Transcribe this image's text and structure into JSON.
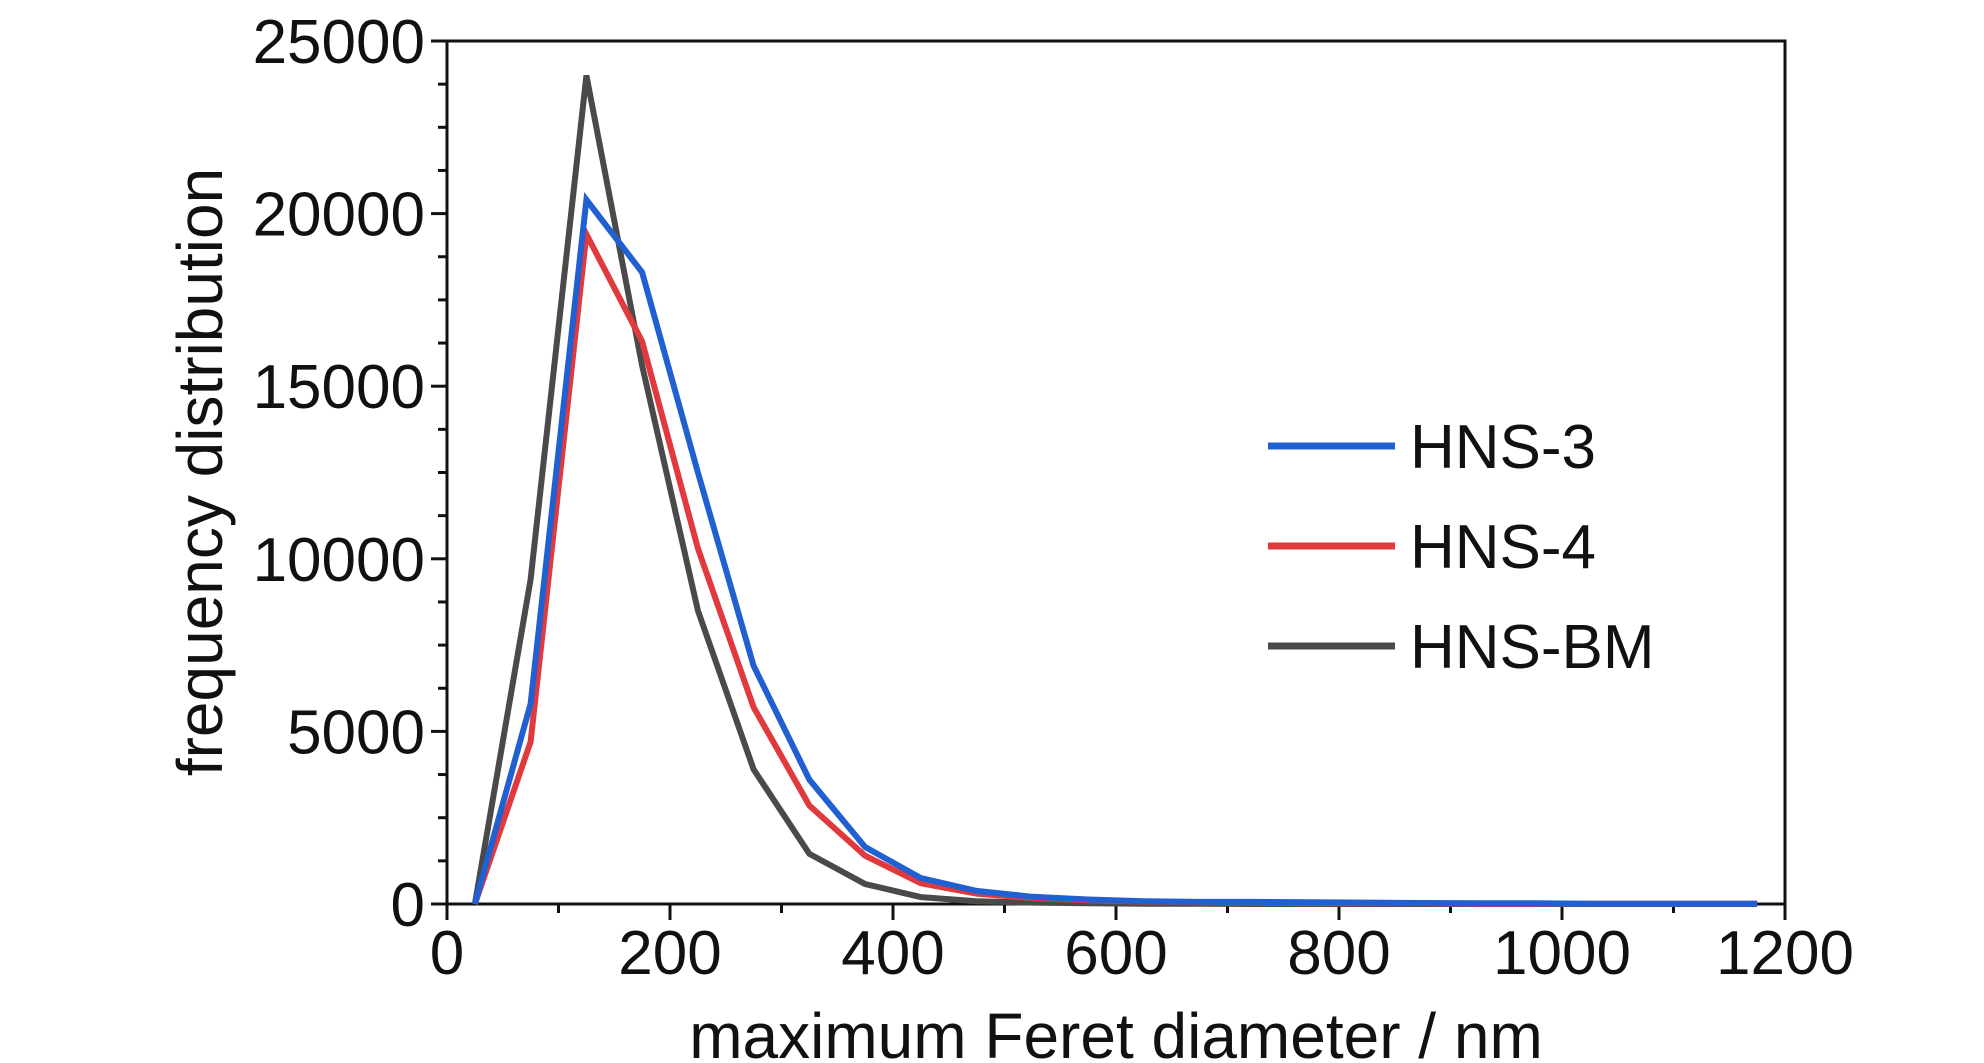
{
  "chart_data": {
    "type": "line",
    "title": "",
    "xlabel": "maximum Feret diameter / nm",
    "ylabel": "frequency distribution",
    "xlim": [
      0,
      1200
    ],
    "ylim": [
      0,
      25000
    ],
    "x_ticks": [
      "0",
      "200",
      "400",
      "600",
      "800",
      "1000",
      "1200"
    ],
    "y_ticks": [
      "0",
      "5000",
      "10000",
      "15000",
      "20000",
      "25000"
    ],
    "x_tick_values": [
      0,
      200,
      400,
      600,
      800,
      1000,
      1200
    ],
    "y_tick_values": [
      0,
      5000,
      10000,
      15000,
      20000,
      25000
    ],
    "grid": false,
    "legend_position": "center-right",
    "x": [
      25,
      75,
      125,
      175,
      225,
      275,
      325,
      375,
      425,
      475,
      525,
      575,
      625,
      675,
      725,
      775,
      825,
      875,
      925,
      975,
      1025,
      1075,
      1125,
      1175
    ],
    "series": [
      {
        "name": "HNS-3",
        "color": "#2060d0",
        "values": [
          0,
          5800,
          20400,
          18300,
          12500,
          6900,
          3600,
          1650,
          750,
          380,
          210,
          130,
          80,
          60,
          60,
          50,
          40,
          30,
          20,
          20,
          10,
          10,
          10,
          10
        ]
      },
      {
        "name": "HNS-4",
        "color": "#e03a3e",
        "values": [
          0,
          4700,
          19400,
          16300,
          10300,
          5700,
          2850,
          1400,
          600,
          300,
          170,
          110,
          70,
          50,
          40,
          30,
          20,
          20,
          10,
          10,
          10,
          10,
          10,
          10
        ]
      },
      {
        "name": "HNS-BM",
        "color": "#4a4a4a",
        "values": [
          0,
          9400,
          24000,
          15600,
          8500,
          3900,
          1450,
          580,
          200,
          80,
          40,
          20,
          10,
          10,
          0,
          0,
          0,
          0,
          0,
          0,
          0,
          0,
          0,
          0
        ]
      }
    ]
  }
}
